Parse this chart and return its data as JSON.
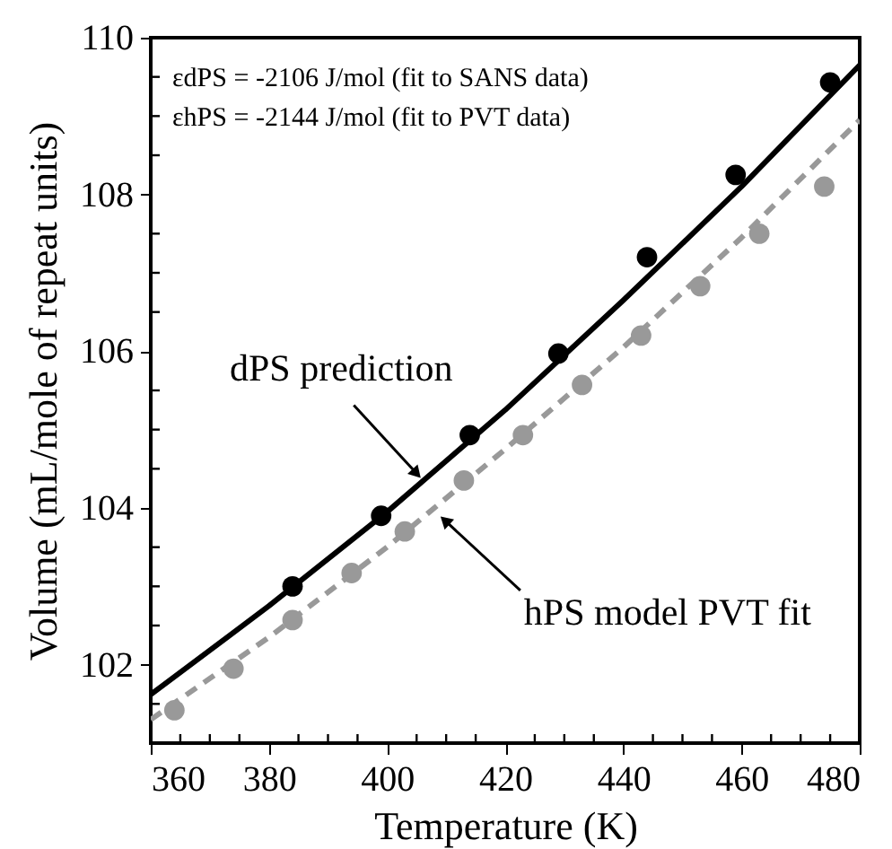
{
  "chart_data": {
    "type": "scatter",
    "xlabel": "Temperature  (K)",
    "ylabel": "Volume  (mL/mole of repeat units)",
    "xlim": [
      360,
      480
    ],
    "ylim": [
      101,
      110
    ],
    "xticks": [
      360,
      {
        "value": 365,
        "label": null
      },
      {
        "value": 370,
        "label": null
      },
      {
        "value": 375,
        "label": null
      },
      380,
      {
        "value": 385,
        "label": null
      },
      {
        "value": 390,
        "label": null
      },
      {
        "value": 395,
        "label": null
      },
      400,
      {
        "value": 405,
        "label": null
      },
      {
        "value": 410,
        "label": null
      },
      {
        "value": 415,
        "label": null
      },
      420,
      {
        "value": 425,
        "label": null
      },
      {
        "value": 430,
        "label": null
      },
      {
        "value": 435,
        "label": null
      },
      440,
      {
        "value": 445,
        "label": null
      },
      {
        "value": 450,
        "label": null
      },
      {
        "value": 455,
        "label": null
      },
      460,
      {
        "value": 465,
        "label": null
      },
      {
        "value": 470,
        "label": null
      },
      {
        "value": 475,
        "label": null
      },
      480
    ],
    "yticks": [
      {
        "value": 101,
        "label": null
      },
      {
        "value": 101.5,
        "label": null
      },
      102,
      {
        "value": 102.5,
        "label": null
      },
      {
        "value": 103,
        "label": null
      },
      {
        "value": 103.5,
        "label": null
      },
      104,
      {
        "value": 104.5,
        "label": null
      },
      {
        "value": 105,
        "label": null
      },
      {
        "value": 105.5,
        "label": null
      },
      106,
      {
        "value": 106.5,
        "label": null
      },
      {
        "value": 107,
        "label": null
      },
      {
        "value": 107.5,
        "label": null
      },
      108,
      {
        "value": 108.5,
        "label": null
      },
      {
        "value": 109,
        "label": null
      },
      {
        "value": 109.5,
        "label": null
      },
      110
    ],
    "grid": false,
    "series": [
      {
        "type": "line",
        "color": "#000000",
        "line_style": "solid",
        "marker": "none",
        "x": [
          360,
          380,
          400,
          420,
          440,
          460,
          480
        ],
        "values": [
          101.62,
          102.75,
          103.95,
          105.25,
          106.65,
          108.1,
          109.65
        ]
      },
      {
        "type": "line",
        "color": "#999999",
        "line_style": "dashed",
        "marker": "none",
        "x": [
          360,
          380,
          400,
          420,
          440,
          460,
          480
        ],
        "values": [
          101.3,
          102.35,
          103.5,
          104.75,
          106.05,
          107.45,
          108.95
        ]
      },
      {
        "color": "#000000",
        "marker": "circle",
        "x": [
          384,
          399,
          414,
          429,
          444,
          459,
          475
        ],
        "values": [
          103.0,
          103.9,
          104.93,
          105.97,
          107.2,
          108.25,
          109.43
        ]
      },
      {
        "color": "#999999",
        "marker": "circle",
        "x": [
          364,
          374,
          384,
          394,
          403,
          413,
          423,
          433,
          443,
          453,
          463,
          474
        ],
        "values": [
          101.42,
          101.95,
          102.57,
          103.17,
          103.7,
          104.35,
          104.93,
          105.57,
          106.2,
          106.83,
          107.5,
          108.1
        ]
      }
    ],
    "annotations": [
      "εdPS = -2106 J/mol (fit to SANS data)",
      "εhPS = -2144 J/mol (fit to PVT data)",
      {
        "text": "dPS prediction",
        "x": 405,
        "y": 104.44
      },
      {
        "text": "hPS model PVT fit",
        "x": 409.8,
        "y": 103.84
      }
    ]
  }
}
